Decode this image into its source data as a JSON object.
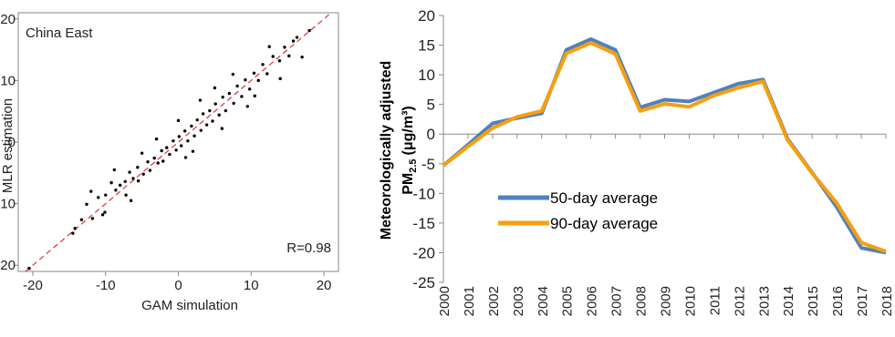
{
  "chart_data": [
    {
      "type": "scatter",
      "title": "China East",
      "xlabel": "GAM simulation",
      "ylabel": "MLR estimation",
      "xlim": [
        -22,
        22
      ],
      "ylim": [
        -21,
        21
      ],
      "xticks": [
        -20,
        -10,
        0,
        10,
        20
      ],
      "yticks": [
        -20,
        -10,
        0,
        10,
        20
      ],
      "annotation": "R=0.98",
      "reference_line": "1:1",
      "colors": {
        "points": "#000000",
        "reference_line": "#e03030",
        "frame": "#888888"
      },
      "points_sampled": [
        [
          -20.5,
          -20.5
        ],
        [
          -14.5,
          -14.8
        ],
        [
          -14.2,
          -14.0
        ],
        [
          -13.3,
          -12.6
        ],
        [
          -12.6,
          -10.1
        ],
        [
          -11.8,
          -12.4
        ],
        [
          -11.0,
          -9.0
        ],
        [
          -10.4,
          -11.8
        ],
        [
          -10.1,
          -11.4
        ],
        [
          -10.0,
          -8.6
        ],
        [
          -9.2,
          -6.6
        ],
        [
          -8.6,
          -7.8
        ],
        [
          -8.0,
          -7.0
        ],
        [
          -7.3,
          -6.4
        ],
        [
          -7.2,
          -8.6
        ],
        [
          -6.7,
          -4.9
        ],
        [
          -6.2,
          -5.9
        ],
        [
          -5.6,
          -4.1
        ],
        [
          -5.5,
          -6.3
        ],
        [
          -4.8,
          -5.2
        ],
        [
          -4.2,
          -3.2
        ],
        [
          -3.9,
          -4.6
        ],
        [
          -3.3,
          -2.6
        ],
        [
          -2.8,
          -3.4
        ],
        [
          -2.3,
          -1.4
        ],
        [
          -2.1,
          -3.1
        ],
        [
          -1.6,
          -0.9
        ],
        [
          -1.2,
          -2.0
        ],
        [
          -0.7,
          0.2
        ],
        [
          -0.3,
          -1.3
        ],
        [
          0.1,
          0.9
        ],
        [
          0.4,
          -0.6
        ],
        [
          0.9,
          1.8
        ],
        [
          1.3,
          0.2
        ],
        [
          1.8,
          2.6
        ],
        [
          2.2,
          1.0
        ],
        [
          2.6,
          3.6
        ],
        [
          3.1,
          1.9
        ],
        [
          3.4,
          4.6
        ],
        [
          3.9,
          2.8
        ],
        [
          4.3,
          5.1
        ],
        [
          4.7,
          3.4
        ],
        [
          5.1,
          6.2
        ],
        [
          5.6,
          4.4
        ],
        [
          6.1,
          7.3
        ],
        [
          6.5,
          5.1
        ],
        [
          7.0,
          7.9
        ],
        [
          7.6,
          6.3
        ],
        [
          8.1,
          9.1
        ],
        [
          8.7,
          7.4
        ],
        [
          9.2,
          10.1
        ],
        [
          9.8,
          8.6
        ],
        [
          10.4,
          11.2
        ],
        [
          11.0,
          10.0
        ],
        [
          11.6,
          12.6
        ],
        [
          12.2,
          11.1
        ],
        [
          13.0,
          13.9
        ],
        [
          13.9,
          13.2
        ],
        [
          14.6,
          15.4
        ],
        [
          15.2,
          14.0
        ],
        [
          15.8,
          16.4
        ],
        [
          16.3,
          17.0
        ],
        [
          17.0,
          13.8
        ],
        [
          18.0,
          18.1
        ],
        [
          -8.8,
          -4.5
        ],
        [
          -5.0,
          -1.8
        ],
        [
          -3.0,
          0.5
        ],
        [
          1.0,
          -2.5
        ],
        [
          3.0,
          6.8
        ],
        [
          6.0,
          2.2
        ],
        [
          7.5,
          11.0
        ],
        [
          9.5,
          5.8
        ],
        [
          12.5,
          15.5
        ],
        [
          14.0,
          10.3
        ],
        [
          -6.5,
          -9.5
        ],
        [
          -12.0,
          -8.0
        ],
        [
          0.0,
          3.5
        ],
        [
          2.0,
          -1.5
        ],
        [
          5.0,
          8.8
        ],
        [
          10.5,
          7.5
        ]
      ]
    },
    {
      "type": "line",
      "ylabel_line1": "Meteorologically adjusted",
      "ylabel_pm": "PM",
      "ylabel_sub": "2.5",
      "ylabel_units": "(μg/m³)",
      "ylim": [
        -25,
        20
      ],
      "yticks": [
        -25,
        -20,
        -15,
        -10,
        -5,
        0,
        5,
        10,
        15,
        20
      ],
      "legend": "inside-left",
      "categories": [
        "2000",
        "2001",
        "2002",
        "2003",
        "2004",
        "2005",
        "2006",
        "2007",
        "2008",
        "2009",
        "2010",
        "2011",
        "2012",
        "2013",
        "2014",
        "2015",
        "2016",
        "2017",
        "2018"
      ],
      "series": [
        {
          "name": "50-day average",
          "color": "#4f81bd",
          "values": [
            -5.3,
            -1.8,
            1.8,
            2.7,
            3.5,
            14.2,
            16.0,
            14.2,
            4.5,
            5.8,
            5.5,
            7.0,
            8.5,
            9.2,
            -0.8,
            -6.5,
            -12.3,
            -19.2,
            -20.0
          ]
        },
        {
          "name": "90-day average",
          "color": "#f79f0f",
          "values": [
            -5.3,
            -2.1,
            1.0,
            2.9,
            3.9,
            13.6,
            15.4,
            13.5,
            3.9,
            5.1,
            4.6,
            6.5,
            7.8,
            8.9,
            -1.0,
            -6.6,
            -11.6,
            -18.3,
            -19.8
          ]
        }
      ]
    }
  ]
}
